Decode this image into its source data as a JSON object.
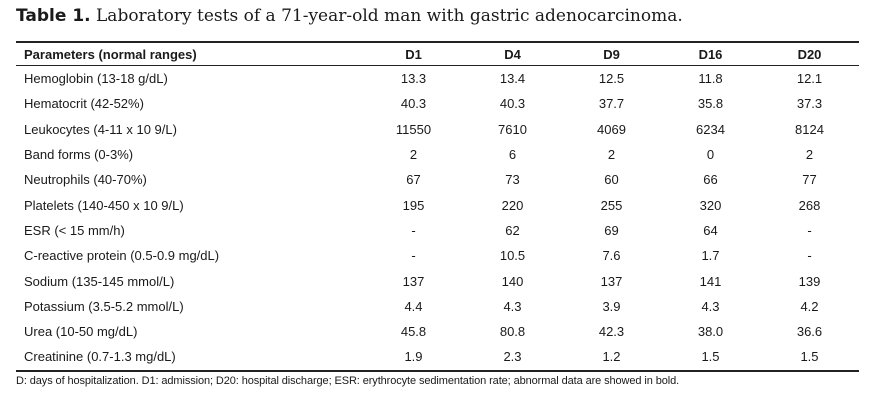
{
  "caption": {
    "label": "Table 1.",
    "text": "Laboratory tests of a 71-year-old man with gastric adenocarcinoma."
  },
  "table": {
    "headers": [
      "Parameters (normal ranges)",
      "D1",
      "D4",
      "D9",
      "D16",
      "D20"
    ],
    "rows": [
      [
        "Hemoglobin (13-18 g/dL)",
        "13.3",
        "13.4",
        "12.5",
        "11.8",
        "12.1"
      ],
      [
        "Hematocrit (42-52%)",
        "40.3",
        "40.3",
        "37.7",
        "35.8",
        "37.3"
      ],
      [
        "Leukocytes (4-11 x 10 9/L)",
        "11550",
        "7610",
        "4069",
        "6234",
        "8124"
      ],
      [
        "Band forms (0-3%)",
        "2",
        "6",
        "2",
        "0",
        "2"
      ],
      [
        "Neutrophils (40-70%)",
        "67",
        "73",
        "60",
        "66",
        "77"
      ],
      [
        "Platelets (140-450 x 10 9/L)",
        "195",
        "220",
        "255",
        "320",
        "268"
      ],
      [
        "ESR (< 15 mm/h)",
        "-",
        "62",
        "69",
        "64",
        "-"
      ],
      [
        "C-reactive protein (0.5-0.9 mg/dL)",
        "-",
        "10.5",
        "7.6",
        "1.7",
        "-"
      ],
      [
        "Sodium (135-145 mmol/L)",
        "137",
        "140",
        "137",
        "141",
        "139"
      ],
      [
        "Potassium (3.5-5.2 mmol/L)",
        "4.4",
        "4.3",
        "3.9",
        "4.3",
        "4.2"
      ],
      [
        "Urea (10-50 mg/dL)",
        "45.8",
        "80.8",
        "42.3",
        "38.0",
        "36.6"
      ],
      [
        "Creatinine (0.7-1.3 mg/dL)",
        "1.9",
        "2.3",
        "1.2",
        "1.5",
        "1.5"
      ]
    ]
  },
  "footnote": "D: days of hospitalization. D1: admission; D20: hospital discharge; ESR: erythrocyte sedimentation rate; abnormal data are showed in bold."
}
